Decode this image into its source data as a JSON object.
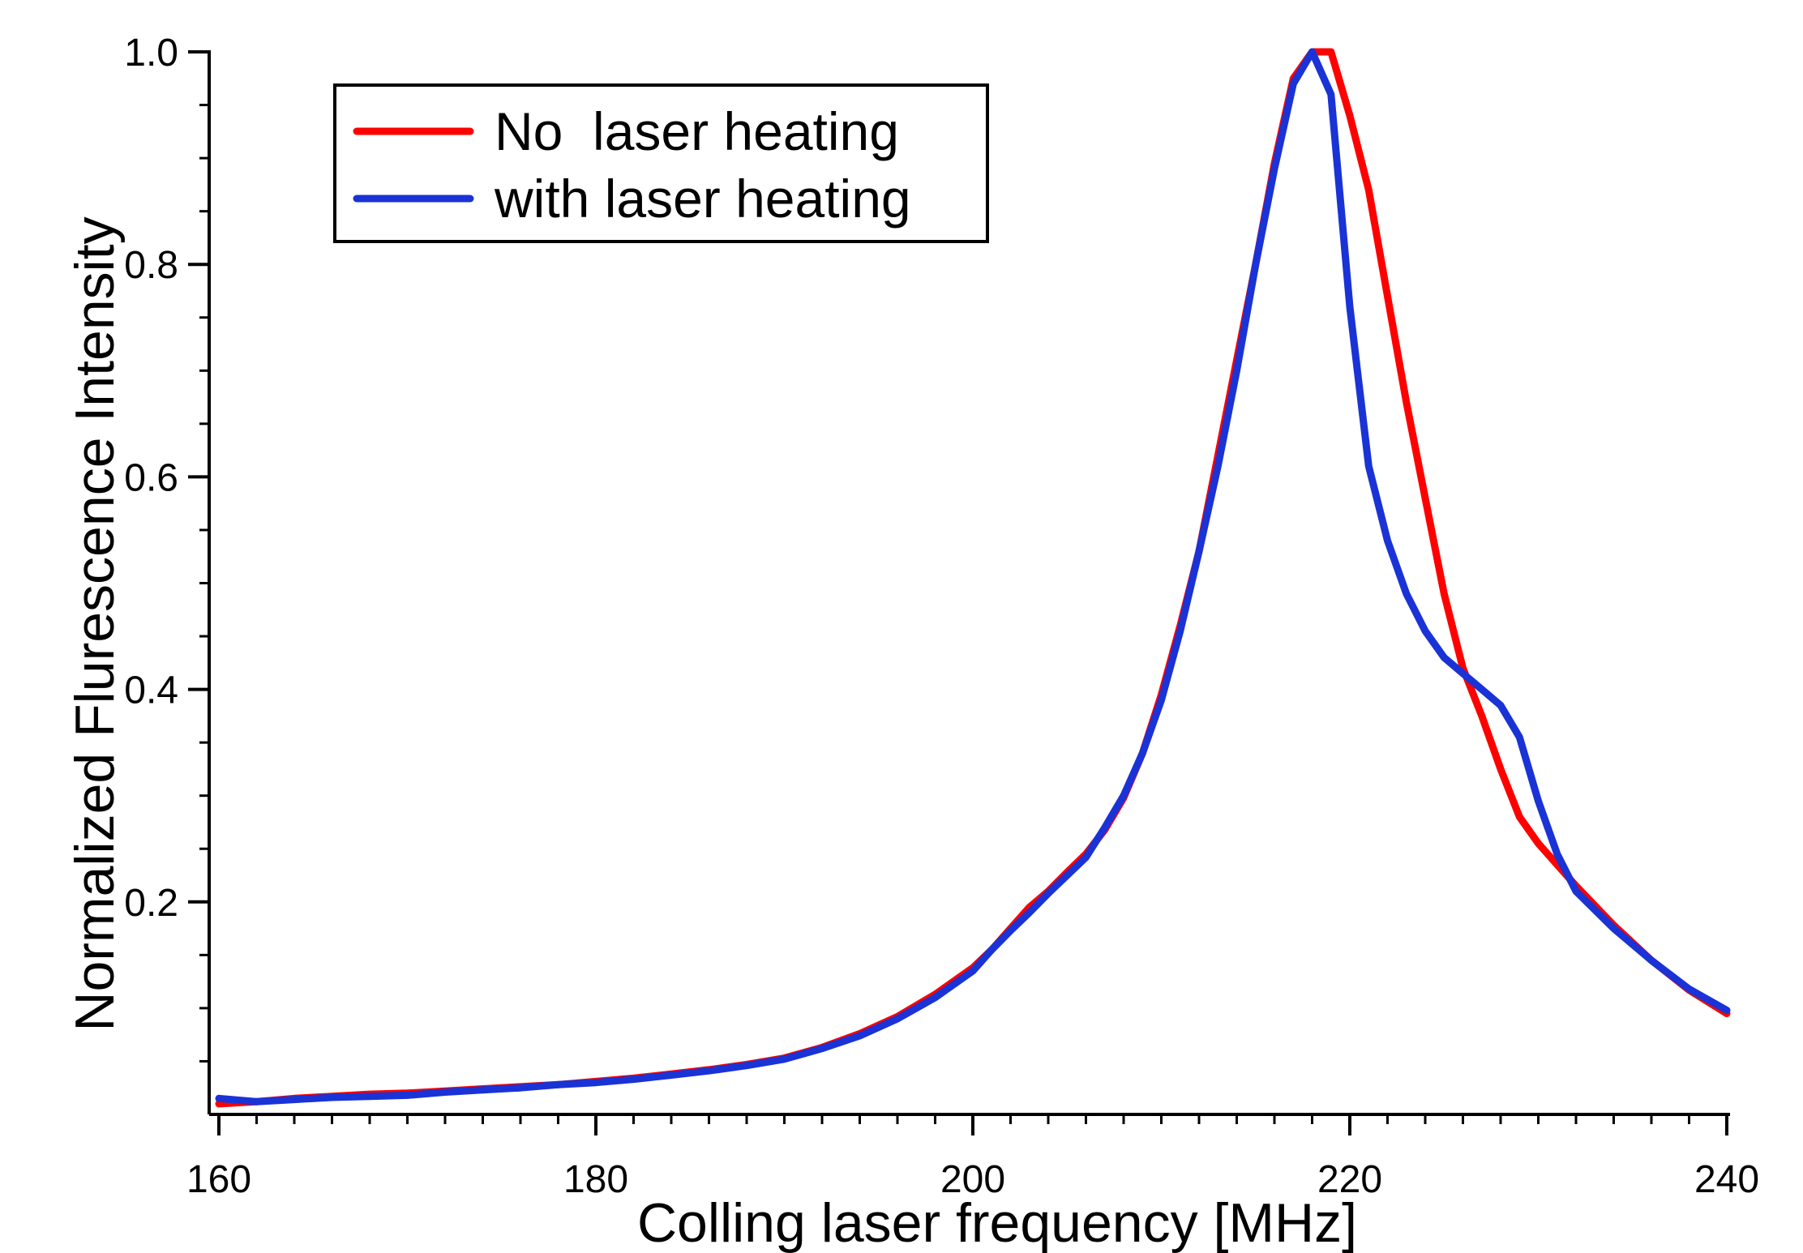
{
  "chart_data": {
    "type": "line",
    "xlabel": "Colling laser frequency [MHz]",
    "ylabel": "Normalized Flurescence Intensity",
    "xlim": [
      160,
      240
    ],
    "ylim": [
      0.0,
      1.0
    ],
    "x_ticks": [
      "160",
      "180",
      "200",
      "220",
      "240"
    ],
    "y_ticks": [
      "0.2",
      "0.4",
      "0.6",
      "0.8",
      "1.0"
    ],
    "grid": false,
    "legend_position": "top-left",
    "series": [
      {
        "name": "No  laser heating",
        "color": "#ff0000",
        "x": [
          160,
          162,
          164,
          166,
          168,
          170,
          172,
          174,
          176,
          178,
          180,
          182,
          184,
          186,
          188,
          190,
          192,
          194,
          196,
          198,
          200,
          201,
          202,
          203,
          204,
          205,
          206,
          207,
          208,
          209,
          210,
          211,
          212,
          213,
          214,
          215,
          216,
          217,
          218,
          219,
          220,
          221,
          222,
          223,
          224,
          225,
          226,
          227,
          228,
          229,
          230,
          232,
          234,
          236,
          238,
          240
        ],
        "y": [
          0.01,
          0.012,
          0.015,
          0.017,
          0.019,
          0.02,
          0.022,
          0.024,
          0.026,
          0.028,
          0.031,
          0.034,
          0.038,
          0.042,
          0.047,
          0.053,
          0.063,
          0.076,
          0.092,
          0.113,
          0.138,
          0.155,
          0.175,
          0.195,
          0.21,
          0.228,
          0.245,
          0.268,
          0.298,
          0.34,
          0.395,
          0.46,
          0.53,
          0.62,
          0.71,
          0.8,
          0.895,
          0.975,
          1.0,
          1.0,
          0.94,
          0.87,
          0.77,
          0.67,
          0.58,
          0.49,
          0.42,
          0.375,
          0.325,
          0.28,
          0.255,
          0.215,
          0.178,
          0.145,
          0.117,
          0.095
        ]
      },
      {
        "name": "with laser heating",
        "color": "#1a33d6",
        "x": [
          160,
          162,
          164,
          166,
          168,
          170,
          172,
          174,
          176,
          178,
          180,
          182,
          184,
          186,
          188,
          190,
          192,
          194,
          196,
          198,
          200,
          201,
          202,
          203,
          204,
          205,
          206,
          207,
          208,
          209,
          210,
          211,
          212,
          213,
          214,
          215,
          216,
          217,
          218,
          219,
          220,
          221,
          222,
          223,
          224,
          225,
          226,
          227,
          228,
          229,
          230,
          231,
          232,
          234,
          236,
          238,
          240
        ],
        "y": [
          0.015,
          0.012,
          0.014,
          0.016,
          0.017,
          0.018,
          0.021,
          0.023,
          0.025,
          0.028,
          0.03,
          0.033,
          0.037,
          0.041,
          0.046,
          0.052,
          0.062,
          0.074,
          0.09,
          0.11,
          0.135,
          0.155,
          0.173,
          0.19,
          0.208,
          0.225,
          0.242,
          0.27,
          0.3,
          0.34,
          0.39,
          0.455,
          0.53,
          0.61,
          0.7,
          0.8,
          0.89,
          0.97,
          1.0,
          0.96,
          0.76,
          0.61,
          0.54,
          0.49,
          0.455,
          0.43,
          0.415,
          0.4,
          0.385,
          0.355,
          0.295,
          0.245,
          0.21,
          0.175,
          0.145,
          0.118,
          0.098
        ]
      }
    ]
  }
}
